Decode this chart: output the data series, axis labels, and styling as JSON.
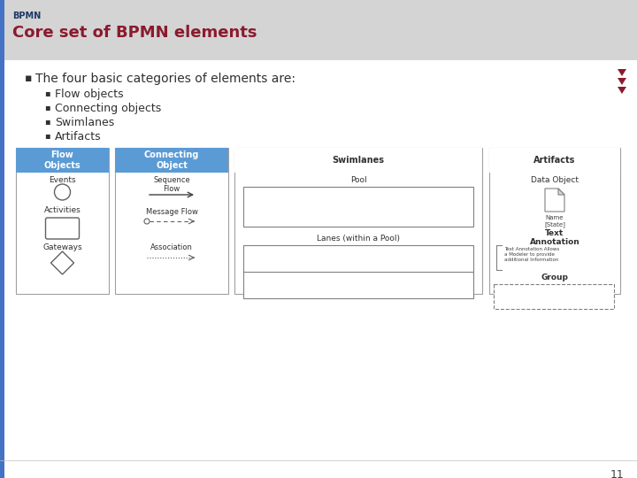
{
  "title_small": "BPMN",
  "title_large": "Core set of BPMN elements",
  "header_bg": "#d4d4d4",
  "header_left_bar": "#4472c4",
  "title_small_color": "#1f3864",
  "title_large_color": "#8b1a2e",
  "body_bg": "#f0f0f0",
  "content_bg": "#ffffff",
  "bullet_main": "The four basic categories of elements are:",
  "bullets": [
    "Flow objects",
    "Connecting objects",
    "Swimlanes",
    "Artifacts"
  ],
  "bullet_color": "#303030",
  "nav_arrows_color": "#8b1a2e",
  "page_number": "11",
  "panel_border": "#a0a0a0",
  "panel_bg": "#ffffff"
}
